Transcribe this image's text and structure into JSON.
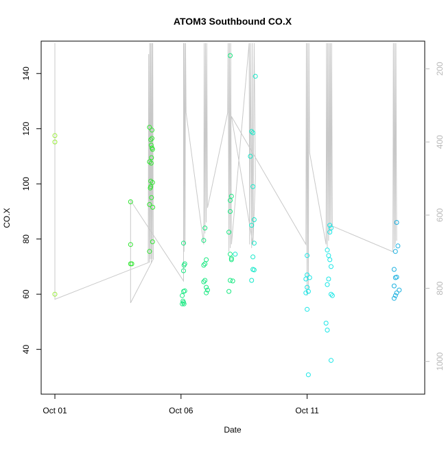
{
  "chart_data": {
    "type": "scatter",
    "title": "ATOM3 Southbound CO.X",
    "xlabel": "Date",
    "ylabel": "CO.X",
    "x_ticks": [
      {
        "label": "Oct 01",
        "day": 1
      },
      {
        "label": "Oct 06",
        "day": 6
      },
      {
        "label": "Oct 11",
        "day": 11
      }
    ],
    "xlim": [
      1,
      15.2
    ],
    "ylim": [
      25,
      151
    ],
    "y_ticks": [
      40,
      60,
      80,
      100,
      120,
      140
    ],
    "right_axis": {
      "ticks": [
        200,
        400,
        600,
        800,
        1000
      ],
      "lim": [
        1080,
        130
      ],
      "color": "#b8b8b8",
      "note": "altitude trace drawn in gray"
    },
    "points": [
      {
        "x": 1.0,
        "y": 117.5
      },
      {
        "x": 1.0,
        "y": 115.2
      },
      {
        "x": 1.0,
        "y": 60.0
      },
      {
        "x": 4.0,
        "y": 93.5
      },
      {
        "x": 4.0,
        "y": 78.0
      },
      {
        "x": 4.0,
        "y": 71.0
      },
      {
        "x": 4.05,
        "y": 71.0
      },
      {
        "x": 4.75,
        "y": 120.5
      },
      {
        "x": 4.85,
        "y": 119.5
      },
      {
        "x": 4.8,
        "y": 116.0
      },
      {
        "x": 4.85,
        "y": 116.5
      },
      {
        "x": 4.82,
        "y": 114.0
      },
      {
        "x": 4.85,
        "y": 113.0
      },
      {
        "x": 4.87,
        "y": 112.5
      },
      {
        "x": 4.83,
        "y": 109.5
      },
      {
        "x": 4.75,
        "y": 108.0
      },
      {
        "x": 4.82,
        "y": 107.5
      },
      {
        "x": 4.8,
        "y": 101.0
      },
      {
        "x": 4.87,
        "y": 100.5
      },
      {
        "x": 4.8,
        "y": 99.0
      },
      {
        "x": 4.78,
        "y": 98.5
      },
      {
        "x": 4.83,
        "y": 95.0
      },
      {
        "x": 4.75,
        "y": 92.5
      },
      {
        "x": 4.88,
        "y": 91.5
      },
      {
        "x": 4.87,
        "y": 79.0
      },
      {
        "x": 4.75,
        "y": 75.5
      },
      {
        "x": 6.1,
        "y": 78.5
      },
      {
        "x": 6.15,
        "y": 71.0
      },
      {
        "x": 6.12,
        "y": 70.5
      },
      {
        "x": 6.1,
        "y": 68.5
      },
      {
        "x": 6.1,
        "y": 61.0
      },
      {
        "x": 6.15,
        "y": 61.2
      },
      {
        "x": 6.05,
        "y": 59.5
      },
      {
        "x": 6.08,
        "y": 57.5
      },
      {
        "x": 6.1,
        "y": 57.0
      },
      {
        "x": 6.05,
        "y": 56.5
      },
      {
        "x": 6.12,
        "y": 56.5
      },
      {
        "x": 6.95,
        "y": 84.0
      },
      {
        "x": 6.9,
        "y": 79.5
      },
      {
        "x": 7.0,
        "y": 72.5
      },
      {
        "x": 6.95,
        "y": 71.0
      },
      {
        "x": 6.9,
        "y": 70.5
      },
      {
        "x": 6.95,
        "y": 65.0
      },
      {
        "x": 6.9,
        "y": 64.5
      },
      {
        "x": 7.0,
        "y": 62.5
      },
      {
        "x": 7.05,
        "y": 61.5
      },
      {
        "x": 7.0,
        "y": 60.5
      },
      {
        "x": 7.95,
        "y": 146.5
      },
      {
        "x": 8.0,
        "y": 95.5
      },
      {
        "x": 7.95,
        "y": 94.0
      },
      {
        "x": 7.95,
        "y": 90.0
      },
      {
        "x": 7.9,
        "y": 82.5
      },
      {
        "x": 7.95,
        "y": 74.5
      },
      {
        "x": 8.15,
        "y": 74.5
      },
      {
        "x": 8.0,
        "y": 73.0
      },
      {
        "x": 8.0,
        "y": 72.5
      },
      {
        "x": 7.95,
        "y": 65.0
      },
      {
        "x": 8.05,
        "y": 64.8
      },
      {
        "x": 7.9,
        "y": 61.0
      },
      {
        "x": 8.8,
        "y": 119.0
      },
      {
        "x": 8.85,
        "y": 118.5
      },
      {
        "x": 8.75,
        "y": 110.0
      },
      {
        "x": 8.85,
        "y": 99.0
      },
      {
        "x": 8.9,
        "y": 87.0
      },
      {
        "x": 8.8,
        "y": 85.0
      },
      {
        "x": 8.9,
        "y": 78.5
      },
      {
        "x": 8.85,
        "y": 73.5
      },
      {
        "x": 8.85,
        "y": 69.0
      },
      {
        "x": 8.9,
        "y": 68.8
      },
      {
        "x": 8.8,
        "y": 65.0
      },
      {
        "x": 8.95,
        "y": 139.0
      },
      {
        "x": 11.0,
        "y": 74.0
      },
      {
        "x": 11.0,
        "y": 67.0
      },
      {
        "x": 11.1,
        "y": 66.0
      },
      {
        "x": 10.95,
        "y": 65.5
      },
      {
        "x": 11.0,
        "y": 62.5
      },
      {
        "x": 11.05,
        "y": 61.0
      },
      {
        "x": 10.95,
        "y": 60.5
      },
      {
        "x": 11.0,
        "y": 54.5
      },
      {
        "x": 11.05,
        "y": 30.8
      },
      {
        "x": 11.8,
        "y": 76.0
      },
      {
        "x": 11.85,
        "y": 74.0
      },
      {
        "x": 11.9,
        "y": 72.5
      },
      {
        "x": 11.95,
        "y": 70.0
      },
      {
        "x": 11.85,
        "y": 65.5
      },
      {
        "x": 11.8,
        "y": 63.5
      },
      {
        "x": 11.95,
        "y": 60.0
      },
      {
        "x": 12.0,
        "y": 59.5
      },
      {
        "x": 11.9,
        "y": 85.0
      },
      {
        "x": 11.95,
        "y": 84.0
      },
      {
        "x": 11.9,
        "y": 82.5
      },
      {
        "x": 11.75,
        "y": 49.5
      },
      {
        "x": 11.8,
        "y": 47.0
      },
      {
        "x": 11.95,
        "y": 36.0
      },
      {
        "x": 14.55,
        "y": 86.0
      },
      {
        "x": 14.6,
        "y": 77.5
      },
      {
        "x": 14.5,
        "y": 75.5
      },
      {
        "x": 14.45,
        "y": 69.0
      },
      {
        "x": 14.5,
        "y": 66.0
      },
      {
        "x": 14.55,
        "y": 66.2
      },
      {
        "x": 14.45,
        "y": 63.0
      },
      {
        "x": 14.65,
        "y": 61.5
      },
      {
        "x": 14.55,
        "y": 60.5
      },
      {
        "x": 14.5,
        "y": 59.5
      },
      {
        "x": 14.45,
        "y": 58.5
      }
    ],
    "altitude_path": [
      [
        1.0,
        130
      ],
      [
        1.0,
        830
      ],
      [
        4.7,
        730
      ],
      [
        4.72,
        160
      ],
      [
        4.74,
        730
      ],
      [
        4.76,
        130
      ],
      [
        4.78,
        720
      ],
      [
        4.8,
        130
      ],
      [
        4.82,
        730
      ],
      [
        4.84,
        130
      ],
      [
        4.86,
        720
      ],
      [
        4.88,
        130
      ],
      [
        4.9,
        720
      ],
      [
        4.0,
        840
      ],
      [
        4.0,
        690
      ],
      [
        4.0,
        560
      ],
      [
        6.1,
        780
      ],
      [
        6.1,
        130
      ],
      [
        6.12,
        700
      ],
      [
        6.14,
        130
      ],
      [
        6.16,
        680
      ],
      [
        6.18,
        130
      ],
      [
        6.2,
        320
      ],
      [
        6.9,
        680
      ],
      [
        6.92,
        130
      ],
      [
        6.95,
        650
      ],
      [
        6.97,
        130
      ],
      [
        7.0,
        620
      ],
      [
        7.02,
        130
      ],
      [
        7.05,
        580
      ],
      [
        7.85,
        320
      ],
      [
        7.87,
        130
      ],
      [
        7.9,
        700
      ],
      [
        7.92,
        130
      ],
      [
        7.95,
        690
      ],
      [
        7.97,
        130
      ],
      [
        8.0,
        680
      ],
      [
        8.7,
        130
      ],
      [
        8.72,
        680
      ],
      [
        8.75,
        130
      ],
      [
        8.8,
        690
      ],
      [
        8.82,
        130
      ],
      [
        8.85,
        670
      ],
      [
        8.9,
        130
      ],
      [
        8.95,
        500
      ],
      [
        8.85,
        680
      ],
      [
        8.0,
        330
      ],
      [
        10.95,
        680
      ],
      [
        10.97,
        130
      ],
      [
        11.0,
        820
      ],
      [
        11.02,
        130
      ],
      [
        11.05,
        800
      ],
      [
        11.07,
        130
      ],
      [
        11.1,
        430
      ],
      [
        11.75,
        680
      ],
      [
        11.77,
        130
      ],
      [
        11.8,
        690
      ],
      [
        11.82,
        130
      ],
      [
        11.85,
        670
      ],
      [
        11.87,
        130
      ],
      [
        11.9,
        650
      ],
      [
        11.92,
        130
      ],
      [
        11.95,
        640
      ],
      [
        11.97,
        130
      ],
      [
        12.0,
        630
      ],
      [
        14.4,
        700
      ],
      [
        14.42,
        130
      ],
      [
        14.45,
        690
      ],
      [
        14.47,
        130
      ],
      [
        14.5,
        680
      ],
      [
        14.52,
        130
      ],
      [
        14.55,
        670
      ]
    ],
    "color_scale": [
      "#9aee3a",
      "#2de62d",
      "#17e880",
      "#12e8c8",
      "#18e6e6",
      "#1ab0e0"
    ],
    "grid": false,
    "legend": "none"
  }
}
